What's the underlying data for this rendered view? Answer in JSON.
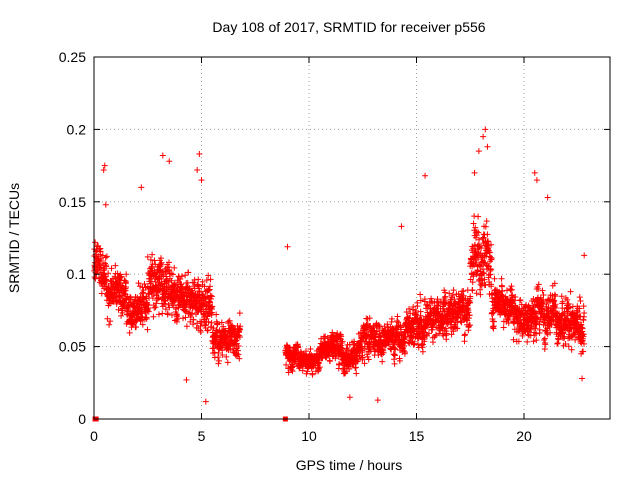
{
  "chart_data": {
    "type": "scatter",
    "title": "Day 108 of 2017, SRMTID for receiver p556",
    "xlabel": "GPS time / hours",
    "ylabel": "SRMTID / TECUs",
    "xlim": [
      0,
      24
    ],
    "ylim": [
      0,
      0.25
    ],
    "xticks": [
      0,
      5,
      10,
      15,
      20
    ],
    "xtick_labels": [
      "0",
      "5",
      "10",
      "15",
      "20"
    ],
    "yticks": [
      0,
      0.05,
      0.1,
      0.15,
      0.2,
      0.25
    ],
    "ytick_labels": [
      "0",
      "0.05",
      "0.1",
      "0.15",
      "0.2",
      "0.25"
    ],
    "grid": true,
    "marker": "+",
    "color": "#ff0000",
    "segments": [
      {
        "x0": 0.0,
        "x1": 0.6,
        "base": 0.105,
        "spread": 0.035
      },
      {
        "x0": 0.6,
        "x1": 1.5,
        "base": 0.085,
        "spread": 0.03
      },
      {
        "x0": 1.5,
        "x1": 2.5,
        "base": 0.075,
        "spread": 0.03
      },
      {
        "x0": 2.5,
        "x1": 3.5,
        "base": 0.095,
        "spread": 0.04
      },
      {
        "x0": 3.5,
        "x1": 4.5,
        "base": 0.085,
        "spread": 0.035
      },
      {
        "x0": 4.5,
        "x1": 5.5,
        "base": 0.08,
        "spread": 0.035
      },
      {
        "x0": 5.5,
        "x1": 6.8,
        "base": 0.055,
        "spread": 0.025
      },
      {
        "x0": 8.9,
        "x1": 9.5,
        "base": 0.045,
        "spread": 0.02
      },
      {
        "x0": 9.5,
        "x1": 10.5,
        "base": 0.04,
        "spread": 0.015
      },
      {
        "x0": 10.5,
        "x1": 11.5,
        "base": 0.05,
        "spread": 0.02
      },
      {
        "x0": 11.5,
        "x1": 12.5,
        "base": 0.045,
        "spread": 0.02
      },
      {
        "x0": 12.5,
        "x1": 13.5,
        "base": 0.055,
        "spread": 0.025
      },
      {
        "x0": 13.5,
        "x1": 14.5,
        "base": 0.055,
        "spread": 0.025
      },
      {
        "x0": 14.5,
        "x1": 15.5,
        "base": 0.065,
        "spread": 0.03
      },
      {
        "x0": 15.5,
        "x1": 16.5,
        "base": 0.07,
        "spread": 0.03
      },
      {
        "x0": 16.5,
        "x1": 17.5,
        "base": 0.075,
        "spread": 0.03
      },
      {
        "x0": 17.5,
        "x1": 18.5,
        "base": 0.11,
        "spread": 0.045
      },
      {
        "x0": 18.5,
        "x1": 19.5,
        "base": 0.08,
        "spread": 0.03
      },
      {
        "x0": 19.5,
        "x1": 20.5,
        "base": 0.07,
        "spread": 0.03
      },
      {
        "x0": 20.5,
        "x1": 21.5,
        "base": 0.075,
        "spread": 0.03
      },
      {
        "x0": 21.5,
        "x1": 22.8,
        "base": 0.065,
        "spread": 0.03
      }
    ],
    "highlights": [
      {
        "x": 0.5,
        "y": 0.175
      },
      {
        "x": 0.45,
        "y": 0.172
      },
      {
        "x": 0.55,
        "y": 0.148
      },
      {
        "x": 3.2,
        "y": 0.182
      },
      {
        "x": 3.5,
        "y": 0.178
      },
      {
        "x": 4.9,
        "y": 0.183
      },
      {
        "x": 4.8,
        "y": 0.172
      },
      {
        "x": 5.0,
        "y": 0.165
      },
      {
        "x": 2.2,
        "y": 0.16
      },
      {
        "x": 18.2,
        "y": 0.2
      },
      {
        "x": 18.1,
        "y": 0.195
      },
      {
        "x": 18.3,
        "y": 0.188
      },
      {
        "x": 17.9,
        "y": 0.185
      },
      {
        "x": 17.7,
        "y": 0.17
      },
      {
        "x": 20.5,
        "y": 0.17
      },
      {
        "x": 20.6,
        "y": 0.165
      },
      {
        "x": 15.4,
        "y": 0.168
      },
      {
        "x": 14.3,
        "y": 0.133
      },
      {
        "x": 21.1,
        "y": 0.153
      },
      {
        "x": 22.8,
        "y": 0.113
      },
      {
        "x": 9.0,
        "y": 0.119
      },
      {
        "x": 5.2,
        "y": 0.012
      },
      {
        "x": 13.2,
        "y": 0.013
      },
      {
        "x": 11.9,
        "y": 0.015
      },
      {
        "x": 22.7,
        "y": 0.028
      },
      {
        "x": 4.3,
        "y": 0.027
      }
    ],
    "zero_points": [
      {
        "x": 0.05,
        "y": 0
      },
      {
        "x": 0.1,
        "y": 0
      },
      {
        "x": 8.9,
        "y": 0
      }
    ]
  }
}
